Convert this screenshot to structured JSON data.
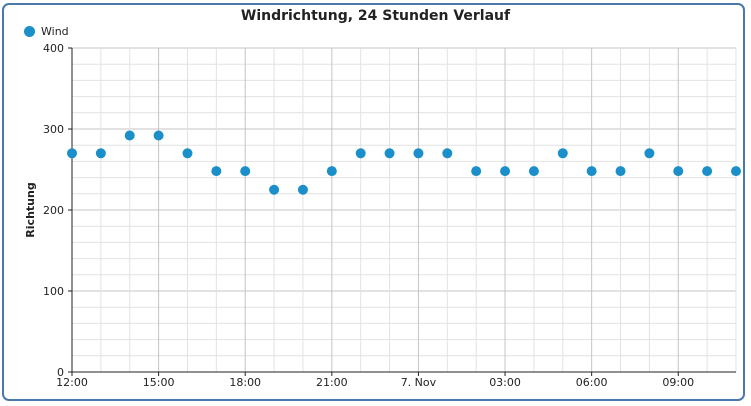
{
  "chart_data": {
    "type": "scatter",
    "title": "Windrichtung, 24 Stunden Verlauf",
    "ylabel": "Richtung",
    "xlabel": "",
    "ylim": [
      0,
      400
    ],
    "yticks": [
      0,
      100,
      200,
      300,
      400
    ],
    "x_tick_labels": [
      "12:00",
      "15:00",
      "18:00",
      "21:00",
      "7. Nov",
      "03:00",
      "06:00",
      "09:00"
    ],
    "x_range_hours": [
      12,
      35
    ],
    "grid": true,
    "legend_position": "top-left",
    "series": [
      {
        "name": "Wind",
        "color": "#1a8fc9",
        "x": [
          "12:00",
          "13:00",
          "14:00",
          "15:00",
          "16:00",
          "17:00",
          "18:00",
          "19:00",
          "20:00",
          "21:00",
          "22:00",
          "23:00",
          "00:00",
          "01:00",
          "02:00",
          "03:00",
          "04:00",
          "05:00",
          "06:00",
          "07:00",
          "08:00",
          "09:00",
          "10:00",
          "11:00"
        ],
        "values": [
          270,
          270,
          292,
          292,
          270,
          248,
          248,
          225,
          225,
          248,
          270,
          270,
          270,
          270,
          248,
          248,
          248,
          270,
          248,
          248,
          270,
          248,
          248,
          248
        ]
      }
    ]
  }
}
